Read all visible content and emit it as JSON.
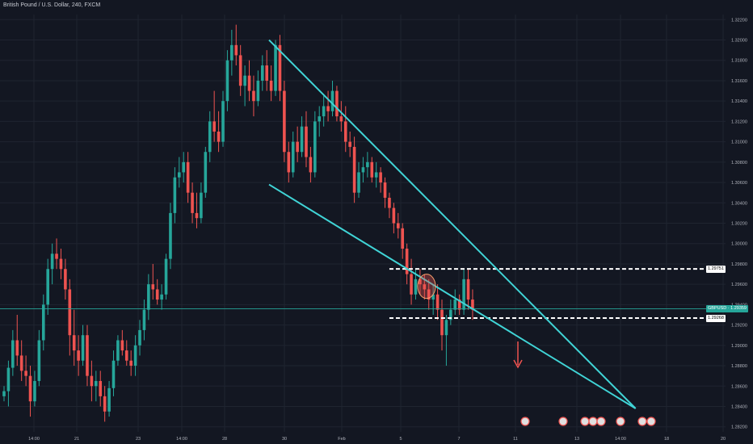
{
  "chart_title": "British Pound / U.S. Dollar, 240, FXCM",
  "colors": {
    "background": "#131722",
    "grid": "#1f2430",
    "bull": "#26a69a",
    "bear": "#ef5350",
    "trendline": "#40d4d6",
    "level_line": "#ffffff",
    "arrow": "#ef5350",
    "axis_text": "#b2b5be"
  },
  "chart_data": {
    "type": "candlestick",
    "symbol": "GBPUSD",
    "interval": "240",
    "ylim": [
      1.2815,
      1.3225
    ],
    "y_ticks": [
      "1.28200",
      "1.28400",
      "1.28600",
      "1.28800",
      "1.29000",
      "1.29200",
      "1.29400",
      "1.29600",
      "1.29800",
      "1.30000",
      "1.30200",
      "1.30400",
      "1.30600",
      "1.30800",
      "1.31000",
      "1.31200",
      "1.31400",
      "1.31600",
      "1.31800",
      "1.32000",
      "1.32200"
    ],
    "x_ticks": [
      "14:00",
      "21",
      "23",
      "14:00",
      "28",
      "30",
      "Feb",
      "5",
      "7",
      "11",
      "13",
      "14:00",
      "18",
      "20"
    ],
    "last_price_label": "GBPUSD · 1.29359",
    "last_price": 1.29359,
    "levels": [
      {
        "label": "1.29751",
        "value": 1.29751
      },
      {
        "label": "1.29268",
        "value": 1.29268
      }
    ],
    "trendlines": [
      {
        "name": "upper",
        "points": [
          [
            0,
            1.32
          ],
          [
            213,
            1.2838
          ]
        ]
      },
      {
        "name": "lower",
        "points": [
          [
            0,
            1.3058
          ],
          [
            213,
            1.2838
          ]
        ]
      }
    ],
    "candles_desc": "index, open, high, low, close",
    "candles": [
      [
        1,
        1.285,
        1.286,
        1.2845,
        1.2855
      ],
      [
        2,
        1.2855,
        1.2885,
        1.284,
        1.2878
      ],
      [
        3,
        1.2878,
        1.2915,
        1.287,
        1.2905
      ],
      [
        4,
        1.2905,
        1.293,
        1.288,
        1.289
      ],
      [
        5,
        1.289,
        1.2905,
        1.2865,
        1.2875
      ],
      [
        6,
        1.2875,
        1.289,
        1.286,
        1.287
      ],
      [
        7,
        1.287,
        1.288,
        1.283,
        1.2845
      ],
      [
        8,
        1.2845,
        1.2875,
        1.284,
        1.2865
      ],
      [
        9,
        1.2865,
        1.2915,
        1.286,
        1.2905
      ],
      [
        10,
        1.2905,
        1.295,
        1.2895,
        1.294
      ],
      [
        11,
        1.294,
        1.2985,
        1.293,
        1.2975
      ],
      [
        12,
        1.2975,
        1.3,
        1.296,
        1.299
      ],
      [
        13,
        1.299,
        1.3005,
        1.2975,
        1.2985
      ],
      [
        14,
        1.2985,
        1.2995,
        1.2965,
        1.2975
      ],
      [
        15,
        1.2975,
        1.2985,
        1.2945,
        1.2955
      ],
      [
        16,
        1.2955,
        1.2965,
        1.289,
        1.291
      ],
      [
        17,
        1.291,
        1.2935,
        1.288,
        1.2895
      ],
      [
        18,
        1.2895,
        1.291,
        1.287,
        1.2885
      ],
      [
        19,
        1.2885,
        1.292,
        1.288,
        1.291
      ],
      [
        20,
        1.291,
        1.292,
        1.286,
        1.287
      ],
      [
        21,
        1.287,
        1.2885,
        1.2845,
        1.286
      ],
      [
        22,
        1.286,
        1.2875,
        1.2845,
        1.2865
      ],
      [
        23,
        1.2865,
        1.2875,
        1.284,
        1.285
      ],
      [
        24,
        1.285,
        1.286,
        1.2825,
        1.2835
      ],
      [
        25,
        1.2835,
        1.2865,
        1.283,
        1.2858
      ],
      [
        26,
        1.2858,
        1.2895,
        1.285,
        1.2885
      ],
      [
        27,
        1.2885,
        1.291,
        1.288,
        1.2905
      ],
      [
        28,
        1.2905,
        1.2915,
        1.289,
        1.2895
      ],
      [
        29,
        1.2895,
        1.2905,
        1.288,
        1.2885
      ],
      [
        30,
        1.2885,
        1.2895,
        1.287,
        1.288
      ],
      [
        31,
        1.288,
        1.291,
        1.287,
        1.29
      ],
      [
        32,
        1.29,
        1.2925,
        1.289,
        1.2915
      ],
      [
        33,
        1.2915,
        1.2945,
        1.2905,
        1.2935
      ],
      [
        34,
        1.2935,
        1.297,
        1.2925,
        1.296
      ],
      [
        35,
        1.296,
        1.298,
        1.2945,
        1.2955
      ],
      [
        36,
        1.2955,
        1.2965,
        1.294,
        1.2945
      ],
      [
        37,
        1.2945,
        1.296,
        1.2935,
        1.295
      ],
      [
        38,
        1.295,
        1.299,
        1.2945,
        1.2985
      ],
      [
        39,
        1.2985,
        1.304,
        1.2975,
        1.303
      ],
      [
        40,
        1.303,
        1.3075,
        1.302,
        1.3065
      ],
      [
        41,
        1.3065,
        1.3085,
        1.3055,
        1.307
      ],
      [
        42,
        1.307,
        1.309,
        1.306,
        1.308
      ],
      [
        43,
        1.308,
        1.309,
        1.304,
        1.305
      ],
      [
        44,
        1.305,
        1.306,
        1.302,
        1.303
      ],
      [
        45,
        1.303,
        1.305,
        1.3015,
        1.3025
      ],
      [
        46,
        1.3025,
        1.306,
        1.302,
        1.305
      ],
      [
        47,
        1.305,
        1.3095,
        1.3045,
        1.309
      ],
      [
        48,
        1.309,
        1.313,
        1.308,
        1.312
      ],
      [
        49,
        1.312,
        1.315,
        1.31,
        1.311
      ],
      [
        50,
        1.311,
        1.313,
        1.309,
        1.31
      ],
      [
        51,
        1.31,
        1.315,
        1.3095,
        1.314
      ],
      [
        52,
        1.314,
        1.319,
        1.313,
        1.318
      ],
      [
        53,
        1.318,
        1.321,
        1.3165,
        1.3195
      ],
      [
        54,
        1.3195,
        1.3215,
        1.3175,
        1.3185
      ],
      [
        55,
        1.3185,
        1.3195,
        1.3145,
        1.3155
      ],
      [
        56,
        1.3155,
        1.3175,
        1.3135,
        1.3165
      ],
      [
        57,
        1.3165,
        1.318,
        1.314,
        1.315
      ],
      [
        58,
        1.315,
        1.3165,
        1.3125,
        1.314
      ],
      [
        59,
        1.314,
        1.317,
        1.3135,
        1.316
      ],
      [
        60,
        1.316,
        1.3185,
        1.315,
        1.3175
      ],
      [
        61,
        1.3175,
        1.319,
        1.315,
        1.316
      ],
      [
        62,
        1.316,
        1.3175,
        1.314,
        1.315
      ],
      [
        63,
        1.315,
        1.32,
        1.3145,
        1.3195
      ],
      [
        64,
        1.3195,
        1.3205,
        1.314,
        1.315
      ],
      [
        65,
        1.315,
        1.316,
        1.308,
        1.309
      ],
      [
        66,
        1.309,
        1.31,
        1.306,
        1.307
      ],
      [
        67,
        1.307,
        1.311,
        1.3065,
        1.31
      ],
      [
        68,
        1.31,
        1.3115,
        1.308,
        1.309
      ],
      [
        69,
        1.309,
        1.3125,
        1.3085,
        1.3115
      ],
      [
        70,
        1.3115,
        1.313,
        1.3075,
        1.3085
      ],
      [
        71,
        1.3085,
        1.3095,
        1.306,
        1.307
      ],
      [
        72,
        1.307,
        1.313,
        1.3065,
        1.312
      ],
      [
        73,
        1.312,
        1.3135,
        1.3105,
        1.3125
      ],
      [
        74,
        1.3125,
        1.3145,
        1.3115,
        1.3135
      ],
      [
        75,
        1.3135,
        1.315,
        1.312,
        1.313
      ],
      [
        76,
        1.313,
        1.316,
        1.3125,
        1.315
      ],
      [
        77,
        1.315,
        1.3155,
        1.312,
        1.3125
      ],
      [
        78,
        1.3125,
        1.314,
        1.311,
        1.312
      ],
      [
        79,
        1.312,
        1.3135,
        1.309,
        1.31
      ],
      [
        80,
        1.31,
        1.311,
        1.3085,
        1.3095
      ],
      [
        81,
        1.3095,
        1.3105,
        1.304,
        1.305
      ],
      [
        82,
        1.305,
        1.308,
        1.3045,
        1.307
      ],
      [
        83,
        1.307,
        1.3085,
        1.306,
        1.3075
      ],
      [
        84,
        1.3075,
        1.309,
        1.3065,
        1.308
      ],
      [
        85,
        1.308,
        1.3085,
        1.306,
        1.3065
      ],
      [
        86,
        1.3065,
        1.308,
        1.3055,
        1.307
      ],
      [
        87,
        1.307,
        1.3075,
        1.305,
        1.306
      ],
      [
        88,
        1.306,
        1.3065,
        1.3035,
        1.3045
      ],
      [
        89,
        1.3045,
        1.305,
        1.3025,
        1.3035
      ],
      [
        90,
        1.3035,
        1.304,
        1.301,
        1.302
      ],
      [
        91,
        1.302,
        1.303,
        1.3005,
        1.3015
      ],
      [
        92,
        1.3015,
        1.302,
        1.2985,
        1.2995
      ],
      [
        93,
        1.2995,
        1.3,
        1.296,
        1.297
      ],
      [
        94,
        1.297,
        1.2985,
        1.294,
        1.295
      ],
      [
        95,
        1.295,
        1.2975,
        1.2945,
        1.2965
      ],
      [
        96,
        1.2965,
        1.2975,
        1.295,
        1.296
      ],
      [
        97,
        1.296,
        1.297,
        1.2945,
        1.2955
      ],
      [
        98,
        1.2955,
        1.2965,
        1.2935,
        1.2945
      ],
      [
        99,
        1.2945,
        1.296,
        1.293,
        1.295
      ],
      [
        100,
        1.295,
        1.296,
        1.2925,
        1.2935
      ],
      [
        101,
        1.2935,
        1.2945,
        1.2895,
        1.291
      ],
      [
        102,
        1.291,
        1.293,
        1.288,
        1.2925
      ],
      [
        103,
        1.2925,
        1.2945,
        1.292,
        1.2935
      ],
      [
        104,
        1.2935,
        1.2955,
        1.293,
        1.2945
      ],
      [
        105,
        1.2945,
        1.295,
        1.293,
        1.2935
      ],
      [
        106,
        1.2935,
        1.2975,
        1.293,
        1.2965
      ],
      [
        107,
        1.2965,
        1.2975,
        1.2935,
        1.2945
      ],
      [
        108,
        1.2945,
        1.2955,
        1.2925,
        1.2935
      ]
    ]
  }
}
